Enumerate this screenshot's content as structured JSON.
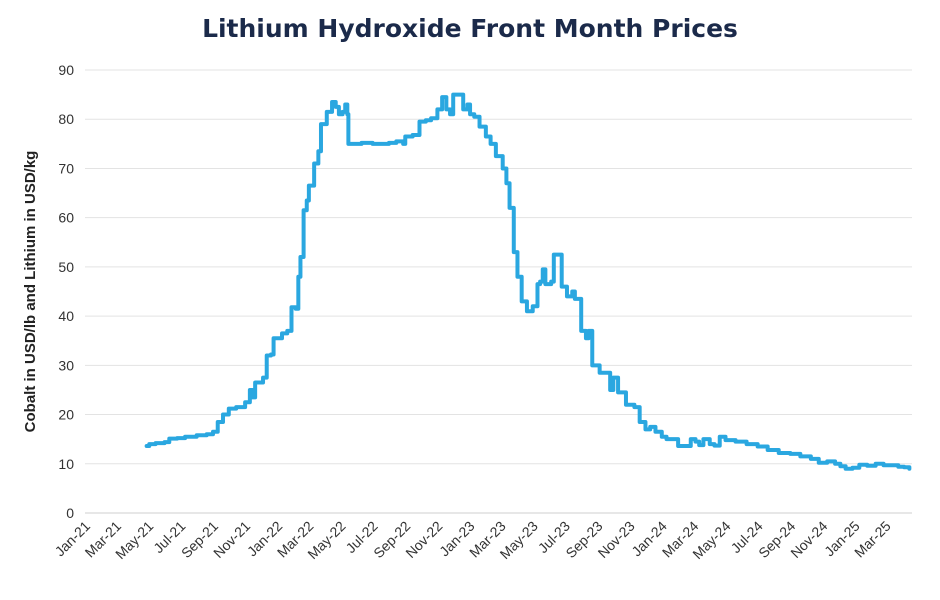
{
  "chart_data": {
    "type": "line",
    "title": "Lithium Hydroxide Front Month Prices",
    "xlabel": "",
    "ylabel": "Cobalt in USD/lb and Lithium in USD/kg",
    "ylim": [
      0,
      90
    ],
    "yticks": [
      0,
      10,
      20,
      30,
      40,
      50,
      60,
      70,
      80,
      90
    ],
    "grid": "horizontal",
    "legend": "none",
    "color": "#2aa7e0",
    "x_tick_labels": [
      "Jan-21",
      "Mar-21",
      "May-21",
      "Jul-21",
      "Sep-21",
      "Nov-21",
      "Jan-22",
      "Mar-22",
      "May-22",
      "Jul-22",
      "Sep-22",
      "Nov-22",
      "Jan-23",
      "Mar-23",
      "May-23",
      "Jul-23",
      "Sep-23",
      "Nov-23",
      "Jan-24",
      "Mar-24",
      "May-24",
      "Jul-24",
      "Sep-24",
      "Nov-24",
      "Jan-25",
      "Mar-25"
    ],
    "series": [
      {
        "points": [
          [
            "2021-04-28",
            13.6
          ],
          [
            "2021-05-03",
            14.0
          ],
          [
            "2021-05-15",
            14.2
          ],
          [
            "2021-06-01",
            14.4
          ],
          [
            "2021-06-10",
            15.1
          ],
          [
            "2021-06-25",
            15.2
          ],
          [
            "2021-07-10",
            15.5
          ],
          [
            "2021-08-01",
            15.8
          ],
          [
            "2021-08-20",
            16.0
          ],
          [
            "2021-09-01",
            16.5
          ],
          [
            "2021-09-10",
            18.5
          ],
          [
            "2021-09-20",
            20.0
          ],
          [
            "2021-10-01",
            21.2
          ],
          [
            "2021-10-15",
            21.5
          ],
          [
            "2021-11-01",
            22.5
          ],
          [
            "2021-11-10",
            25.0
          ],
          [
            "2021-11-15",
            23.5
          ],
          [
            "2021-11-20",
            26.5
          ],
          [
            "2021-12-05",
            27.5
          ],
          [
            "2021-12-12",
            32.0
          ],
          [
            "2021-12-20",
            32.2
          ],
          [
            "2021-12-25",
            35.5
          ],
          [
            "2022-01-10",
            36.5
          ],
          [
            "2022-01-20",
            37.0
          ],
          [
            "2022-01-28",
            41.8
          ],
          [
            "2022-02-05",
            41.5
          ],
          [
            "2022-02-10",
            48.0
          ],
          [
            "2022-02-14",
            52.0
          ],
          [
            "2022-02-20",
            61.5
          ],
          [
            "2022-02-26",
            63.5
          ],
          [
            "2022-03-02",
            66.5
          ],
          [
            "2022-03-12",
            71.0
          ],
          [
            "2022-03-20",
            73.5
          ],
          [
            "2022-03-25",
            79.0
          ],
          [
            "2022-04-05",
            81.5
          ],
          [
            "2022-04-15",
            83.5
          ],
          [
            "2022-04-22",
            82.5
          ],
          [
            "2022-04-28",
            81.0
          ],
          [
            "2022-05-05",
            81.5
          ],
          [
            "2022-05-10",
            83.0
          ],
          [
            "2022-05-14",
            81.0
          ],
          [
            "2022-05-16",
            75.0
          ],
          [
            "2022-06-01",
            75.0
          ],
          [
            "2022-06-10",
            75.2
          ],
          [
            "2022-07-01",
            75.0
          ],
          [
            "2022-08-01",
            75.2
          ],
          [
            "2022-08-15",
            75.5
          ],
          [
            "2022-08-28",
            75.0
          ],
          [
            "2022-09-01",
            76.5
          ],
          [
            "2022-09-15",
            76.8
          ],
          [
            "2022-09-28",
            79.5
          ],
          [
            "2022-10-10",
            79.8
          ],
          [
            "2022-10-20",
            80.2
          ],
          [
            "2022-11-01",
            82.0
          ],
          [
            "2022-11-10",
            84.5
          ],
          [
            "2022-11-18",
            82.0
          ],
          [
            "2022-11-25",
            81.0
          ],
          [
            "2022-12-01",
            85.0
          ],
          [
            "2022-12-15",
            85.0
          ],
          [
            "2022-12-20",
            82.0
          ],
          [
            "2022-12-28",
            83.0
          ],
          [
            "2023-01-02",
            81.0
          ],
          [
            "2023-01-10",
            80.5
          ],
          [
            "2023-01-20",
            78.5
          ],
          [
            "2023-02-01",
            76.5
          ],
          [
            "2023-02-10",
            75.0
          ],
          [
            "2023-02-20",
            72.5
          ],
          [
            "2023-03-05",
            70.0
          ],
          [
            "2023-03-12",
            67.0
          ],
          [
            "2023-03-18",
            62.0
          ],
          [
            "2023-03-26",
            53.0
          ],
          [
            "2023-04-02",
            48.0
          ],
          [
            "2023-04-10",
            43.0
          ],
          [
            "2023-04-20",
            41.0
          ],
          [
            "2023-05-01",
            42.0
          ],
          [
            "2023-05-10",
            46.5
          ],
          [
            "2023-05-15",
            47.0
          ],
          [
            "2023-05-20",
            49.5
          ],
          [
            "2023-05-25",
            46.5
          ],
          [
            "2023-06-05",
            47.0
          ],
          [
            "2023-06-10",
            52.5
          ],
          [
            "2023-06-18",
            52.5
          ],
          [
            "2023-06-25",
            46.0
          ],
          [
            "2023-07-05",
            44.0
          ],
          [
            "2023-07-15",
            45.0
          ],
          [
            "2023-07-20",
            43.5
          ],
          [
            "2023-08-01",
            37.0
          ],
          [
            "2023-08-10",
            35.5
          ],
          [
            "2023-08-15",
            37.0
          ],
          [
            "2023-08-22",
            30.0
          ],
          [
            "2023-09-05",
            28.5
          ],
          [
            "2023-09-15",
            28.5
          ],
          [
            "2023-09-25",
            25.0
          ],
          [
            "2023-10-01",
            27.5
          ],
          [
            "2023-10-10",
            24.5
          ],
          [
            "2023-10-25",
            22.0
          ],
          [
            "2023-11-10",
            21.5
          ],
          [
            "2023-11-20",
            18.5
          ],
          [
            "2023-12-01",
            17.0
          ],
          [
            "2023-12-10",
            17.5
          ],
          [
            "2023-12-20",
            16.5
          ],
          [
            "2024-01-01",
            15.5
          ],
          [
            "2024-01-10",
            15.0
          ],
          [
            "2024-01-20",
            15.0
          ],
          [
            "2024-02-01",
            13.6
          ],
          [
            "2024-02-15",
            13.6
          ],
          [
            "2024-02-25",
            15.0
          ],
          [
            "2024-03-05",
            14.5
          ],
          [
            "2024-03-12",
            13.8
          ],
          [
            "2024-03-20",
            15.0
          ],
          [
            "2024-04-01",
            14.0
          ],
          [
            "2024-04-10",
            13.7
          ],
          [
            "2024-04-20",
            15.5
          ],
          [
            "2024-05-01",
            14.8
          ],
          [
            "2024-05-20",
            14.5
          ],
          [
            "2024-06-10",
            14.0
          ],
          [
            "2024-07-01",
            13.5
          ],
          [
            "2024-07-20",
            12.8
          ],
          [
            "2024-08-10",
            12.2
          ],
          [
            "2024-09-01",
            12.0
          ],
          [
            "2024-09-20",
            11.5
          ],
          [
            "2024-10-10",
            11.0
          ],
          [
            "2024-10-25",
            10.2
          ],
          [
            "2024-11-10",
            10.5
          ],
          [
            "2024-11-25",
            10.0
          ],
          [
            "2024-12-05",
            9.5
          ],
          [
            "2024-12-15",
            9.0
          ],
          [
            "2024-12-28",
            9.2
          ],
          [
            "2025-01-10",
            9.8
          ],
          [
            "2025-01-25",
            9.6
          ],
          [
            "2025-02-10",
            10.0
          ],
          [
            "2025-02-25",
            9.7
          ],
          [
            "2025-03-10",
            9.7
          ],
          [
            "2025-03-25",
            9.4
          ],
          [
            "2025-04-05",
            9.3
          ],
          [
            "2025-04-15",
            9.0
          ]
        ]
      }
    ]
  }
}
